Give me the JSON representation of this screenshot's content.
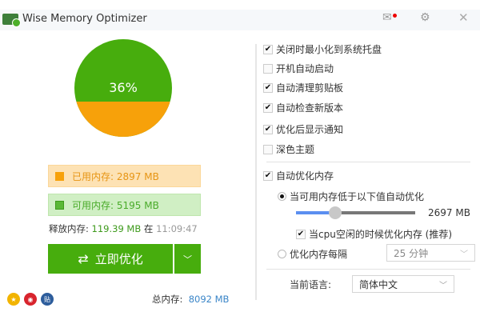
{
  "app": {
    "title": "Wise Memory Optimizer"
  },
  "colors": {
    "used": "#f7a10a",
    "free": "#47ad0d",
    "accent": "#47ad0d"
  },
  "gauge": {
    "percent_label": "36%",
    "used_percent": 36
  },
  "legend": {
    "used": "已用内存: 2897 MB",
    "free": "可用内存: 5195 MB"
  },
  "release": {
    "label": "释放内存:",
    "amount": "119.39 MB",
    "at": "在",
    "time": "11:09:47"
  },
  "buttons": {
    "optimize": "立即优化"
  },
  "total": {
    "label": "总内存:",
    "value": "8092 MB"
  },
  "settings": {
    "options": [
      {
        "label": "关闭时最小化到系统托盘",
        "checked": true
      },
      {
        "label": "开机自动启动",
        "checked": false
      },
      {
        "label": "自动清理剪贴板",
        "checked": true
      },
      {
        "label": "自动检查新版本",
        "checked": true
      },
      {
        "label": "优化后显示通知",
        "checked": true
      },
      {
        "label": "深色主题",
        "checked": false
      }
    ],
    "auto_optimize": {
      "label": "自动优化内存",
      "checked": true
    },
    "threshold_radio": {
      "label": "当可用内存低于以下值自动优化",
      "selected": true
    },
    "threshold": {
      "value_label": "2697 MB",
      "fraction": 0.33
    },
    "cpu_idle": {
      "label": "当cpu空闲的时候优化内存 (推荐)",
      "checked": true
    },
    "interval_radio": {
      "label": "优化内存每隔",
      "selected": false
    },
    "interval_select": "25 分钟",
    "language_label": "当前语言:",
    "language_select": "简体中文"
  }
}
